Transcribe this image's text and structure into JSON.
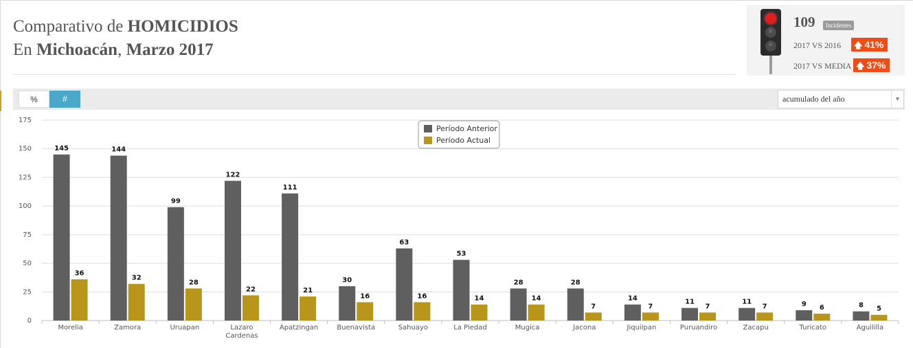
{
  "header": {
    "title_line1_prefix": "Comparativo de ",
    "title_line1_bold": "HOMICIDIOS",
    "title_line2_prefix": "En ",
    "title_line2_bold1": "Michoacán",
    "title_line2_sep": ", ",
    "title_line2_bold2": "Marzo 2017"
  },
  "kpi": {
    "count": "109",
    "count_badge": "Incidentes",
    "row1_label": "2017 VS 2016",
    "row1_value": "41%",
    "row2_label": "2017 VS MEDIA",
    "row2_value": "37%",
    "traffic_light_state": "red",
    "arrow_icon": "arrow-up-icon",
    "accent_color": "#ef4d16"
  },
  "toolbar": {
    "tab_percent": "%",
    "tab_number": "#",
    "active_tab": "#",
    "period_select": "acumulado del año"
  },
  "chart_data": {
    "type": "bar",
    "categories": [
      "Morelia",
      "Zamora",
      "Uruapan",
      "Lazaro Cardenas",
      "Apatzingan",
      "Buenavista",
      "Sahuayo",
      "La Piedad",
      "Mugica",
      "Jacona",
      "Jiquilpan",
      "Puruandiro",
      "Zacapu",
      "Turicato",
      "Aguililla"
    ],
    "series": [
      {
        "name": "Período Anterior",
        "color": "#5f5f5f",
        "values": [
          145,
          144,
          99,
          122,
          111,
          30,
          63,
          53,
          28,
          28,
          14,
          11,
          11,
          9,
          8
        ]
      },
      {
        "name": "Período Actual",
        "color": "#b8961c",
        "values": [
          36,
          32,
          28,
          22,
          21,
          16,
          16,
          14,
          14,
          7,
          7,
          7,
          7,
          6,
          5
        ]
      }
    ],
    "yticks": [
      0,
      25,
      50,
      75,
      100,
      125,
      150,
      175
    ],
    "ylim": [
      0,
      175
    ],
    "grid": true,
    "legend_position": "top-center",
    "data_labels": true
  }
}
